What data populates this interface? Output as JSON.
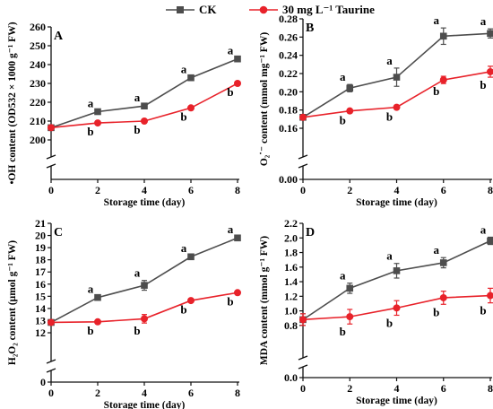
{
  "legend": {
    "ck_label": "CK",
    "taurine_label": "30 mg L⁻¹ Taurine"
  },
  "colors": {
    "ck": "#4d4d4d",
    "taurine": "#e8222a",
    "axis": "#111111"
  },
  "chart_data": [
    {
      "type": "line",
      "panel": "A",
      "xlabel": "Storage time (day)",
      "ylabel": "•OH content (OD532 × 1000 g⁻¹ FW)",
      "x": [
        0,
        2,
        4,
        6,
        8
      ],
      "xticks": [
        "0",
        "2",
        "4",
        "6",
        "8"
      ],
      "ylim": [
        200,
        260
      ],
      "yticks": [
        "200",
        "210",
        "220",
        "230",
        "240",
        "250",
        "260"
      ],
      "axis_break": true,
      "series": [
        {
          "name": "CK",
          "values": [
            206.5,
            215,
            218,
            233,
            243
          ],
          "err": [
            0.4,
            0.5,
            0.5,
            0.6,
            0.6
          ],
          "labels": [
            "",
            "a",
            "a",
            "a",
            "a"
          ]
        },
        {
          "name": "30 mg L⁻¹ Taurine",
          "values": [
            206.5,
            209,
            210,
            217,
            230
          ],
          "err": [
            0.4,
            0.5,
            0.5,
            0.5,
            0.5
          ],
          "labels": [
            "",
            "b",
            "b",
            "b",
            "b"
          ]
        }
      ]
    },
    {
      "type": "line",
      "panel": "B",
      "xlabel": "Storage time (day)",
      "ylabel": "O₂˙⁻ content (mmol mg⁻¹ FW)",
      "x": [
        0,
        2,
        4,
        6,
        8
      ],
      "xticks": [
        "0",
        "2",
        "4",
        "6",
        "8"
      ],
      "ylim": [
        0.16,
        0.28
      ],
      "yticks": [
        "0.16",
        "0.18",
        "0.20",
        "0.22",
        "0.24",
        "0.26",
        "0.28"
      ],
      "zero_tick": "0.00",
      "axis_break": true,
      "series": [
        {
          "name": "CK",
          "values": [
            0.172,
            0.204,
            0.216,
            0.261,
            0.264
          ],
          "err": [
            0.002,
            0.004,
            0.01,
            0.009,
            0.005
          ],
          "labels": [
            "",
            "a",
            "a",
            "a",
            "a"
          ]
        },
        {
          "name": "30 mg L⁻¹ Taurine",
          "values": [
            0.172,
            0.179,
            0.183,
            0.213,
            0.222
          ],
          "err": [
            0.002,
            0.002,
            0.002,
            0.004,
            0.006
          ],
          "labels": [
            "",
            "b",
            "b",
            "b",
            "b"
          ]
        }
      ]
    },
    {
      "type": "line",
      "panel": "C",
      "xlabel": "Storage time (day)",
      "ylabel": "H₂O₂ content (μmol g⁻¹ FW)",
      "x": [
        0,
        2,
        4,
        6,
        8
      ],
      "xticks": [
        "0",
        "2",
        "4",
        "6",
        "8"
      ],
      "ylim": [
        12,
        21
      ],
      "yticks": [
        "12",
        "13",
        "14",
        "15",
        "16",
        "17",
        "18",
        "19",
        "20",
        "21"
      ],
      "zero_tick": "0",
      "axis_break": true,
      "series": [
        {
          "name": "CK",
          "values": [
            12.85,
            14.9,
            15.9,
            18.25,
            19.8
          ],
          "err": [
            0.05,
            0.1,
            0.4,
            0.1,
            0.1
          ],
          "labels": [
            "",
            "a",
            "a",
            "a",
            "a"
          ]
        },
        {
          "name": "30 mg L⁻¹ Taurine",
          "values": [
            12.85,
            12.9,
            13.15,
            14.65,
            15.3
          ],
          "err": [
            0.05,
            0.1,
            0.35,
            0.1,
            0.1
          ],
          "labels": [
            "",
            "b",
            "b",
            "b",
            "b"
          ]
        }
      ]
    },
    {
      "type": "line",
      "panel": "D",
      "xlabel": "Storage time (day)",
      "ylabel": "MDA content (mmol g⁻¹ FW)",
      "x": [
        0,
        2,
        4,
        6,
        8
      ],
      "xticks": [
        "0",
        "2",
        "4",
        "6",
        "8"
      ],
      "ylim": [
        0.7,
        2.2
      ],
      "yticks": [
        "0.8",
        "1.0",
        "1.2",
        "1.4",
        "1.6",
        "1.8",
        "2.0",
        "2.2"
      ],
      "zero_tick": "0.0",
      "axis_break": true,
      "series": [
        {
          "name": "CK",
          "values": [
            0.88,
            1.31,
            1.55,
            1.66,
            1.96
          ],
          "err": [
            0.08,
            0.07,
            0.1,
            0.07,
            0.05
          ],
          "labels": [
            "",
            "a",
            "a",
            "a",
            "a"
          ]
        },
        {
          "name": "30 mg L⁻¹ Taurine",
          "values": [
            0.88,
            0.92,
            1.04,
            1.18,
            1.21
          ],
          "err": [
            0.08,
            0.1,
            0.1,
            0.09,
            0.1
          ],
          "labels": [
            "",
            "b",
            "b",
            "b",
            "b"
          ]
        }
      ]
    }
  ]
}
